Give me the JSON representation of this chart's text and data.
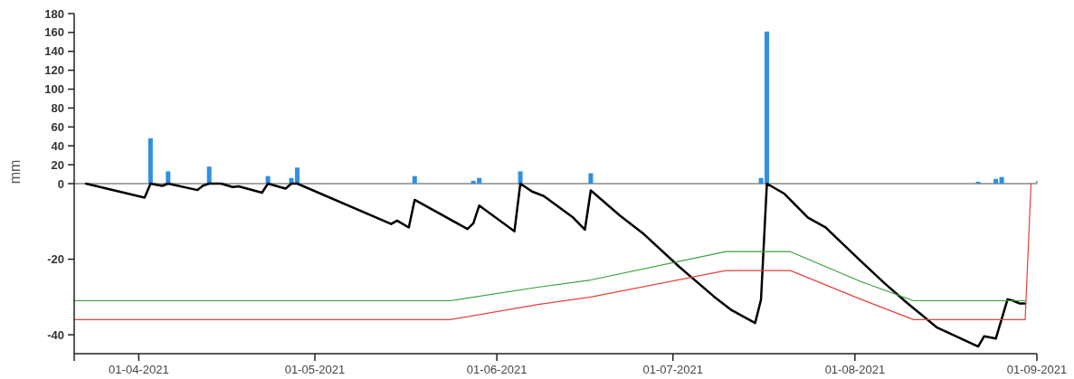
{
  "chart_data": [
    {
      "type": "bar",
      "x": [
        "2021-04-03",
        "2021-04-06",
        "2021-04-13",
        "2021-04-23",
        "2021-04-27",
        "2021-04-28",
        "2021-05-18",
        "2021-05-28",
        "2021-05-29",
        "2021-06-05",
        "2021-06-17",
        "2021-07-16",
        "2021-07-17",
        "2021-08-22",
        "2021-08-25",
        "2021-08-26"
      ],
      "values": [
        48,
        13,
        18,
        8,
        6,
        17,
        8,
        3,
        6,
        13,
        11,
        6,
        161,
        2,
        5,
        7
      ],
      "color": "#2f8fe0",
      "xlim": [
        "2021-03-21",
        "2021-09-01"
      ],
      "ylim": [
        0,
        180
      ],
      "yticks": [
        0,
        20,
        40,
        60,
        80,
        100,
        120,
        140,
        160,
        180
      ],
      "tick_labels": "y",
      "grid": false
    },
    {
      "type": "line",
      "ylabel": "mm",
      "xlim": [
        "2021-03-21",
        "2021-09-01"
      ],
      "ylim": [
        -45,
        0
      ],
      "yticks": [
        -40,
        -20
      ],
      "xticks": [
        {
          "value": "2021-04-01",
          "label": "01-04-2021"
        },
        {
          "value": "2021-05-01",
          "label": "01-05-2021"
        },
        {
          "value": "2021-06-01",
          "label": "01-06-2021"
        },
        {
          "value": "2021-07-01",
          "label": "01-07-2021"
        },
        {
          "value": "2021-08-01",
          "label": "01-08-2021"
        },
        {
          "value": "2021-09-01",
          "label": "01-09-2021"
        }
      ],
      "grid": false,
      "marker": "none",
      "line_style": "solid",
      "series": [
        {
          "color": "#000000",
          "x": [
            "2021-03-23",
            "2021-04-02",
            "2021-04-03",
            "2021-04-05",
            "2021-04-06",
            "2021-04-11",
            "2021-04-12",
            "2021-04-13",
            "2021-04-15",
            "2021-04-17",
            "2021-04-18",
            "2021-04-22",
            "2021-04-23",
            "2021-04-26",
            "2021-04-27",
            "2021-04-28",
            "2021-05-14",
            "2021-05-15",
            "2021-05-17",
            "2021-05-18",
            "2021-05-27",
            "2021-05-28",
            "2021-05-29",
            "2021-06-04",
            "2021-06-05",
            "2021-06-07",
            "2021-06-09",
            "2021-06-12",
            "2021-06-14",
            "2021-06-16",
            "2021-06-17",
            "2021-06-22",
            "2021-06-26",
            "2021-07-02",
            "2021-07-08",
            "2021-07-11",
            "2021-07-15",
            "2021-07-16",
            "2021-07-17",
            "2021-07-20",
            "2021-07-24",
            "2021-07-27",
            "2021-08-02",
            "2021-08-06",
            "2021-08-10",
            "2021-08-15",
            "2021-08-22",
            "2021-08-23",
            "2021-08-25",
            "2021-08-27",
            "2021-08-28",
            "2021-08-29",
            "2021-08-30"
          ],
          "values": [
            0,
            -3.7,
            0,
            -0.6,
            0,
            -1.7,
            -0.5,
            0,
            0,
            -0.9,
            -0.7,
            -2.4,
            0,
            -1.3,
            0,
            0,
            -10.7,
            -9.8,
            -11.6,
            -4.3,
            -12,
            -10.5,
            -5.8,
            -12.6,
            0,
            -2.1,
            -3.3,
            -6.7,
            -9,
            -12.2,
            -1.8,
            -8.5,
            -13.3,
            -21.9,
            -29.9,
            -33.5,
            -36.9,
            -30.7,
            0,
            -2.7,
            -9,
            -11.6,
            -20.5,
            -26.3,
            -31.7,
            -38.1,
            -43.1,
            -40.4,
            -41,
            -30.6,
            -31,
            -31.7,
            -31.7
          ]
        },
        {
          "color": "#3aa03a",
          "x": [
            "2021-03-21",
            "2021-05-24",
            "2021-06-08",
            "2021-06-17",
            "2021-07-10",
            "2021-07-21",
            "2021-08-02",
            "2021-08-11",
            "2021-08-30"
          ],
          "values": [
            -31,
            -31,
            -27.4,
            -25.5,
            -18,
            -18,
            -25.9,
            -31,
            -31
          ]
        },
        {
          "color": "#e8413a",
          "x": [
            "2021-03-21",
            "2021-05-24",
            "2021-06-08",
            "2021-06-17",
            "2021-07-10",
            "2021-07-21",
            "2021-08-02",
            "2021-08-11",
            "2021-08-30",
            "2021-08-31"
          ],
          "values": [
            -36,
            -36,
            -32,
            -30,
            -23,
            -23,
            -30.6,
            -36,
            -36,
            0
          ]
        }
      ]
    }
  ]
}
